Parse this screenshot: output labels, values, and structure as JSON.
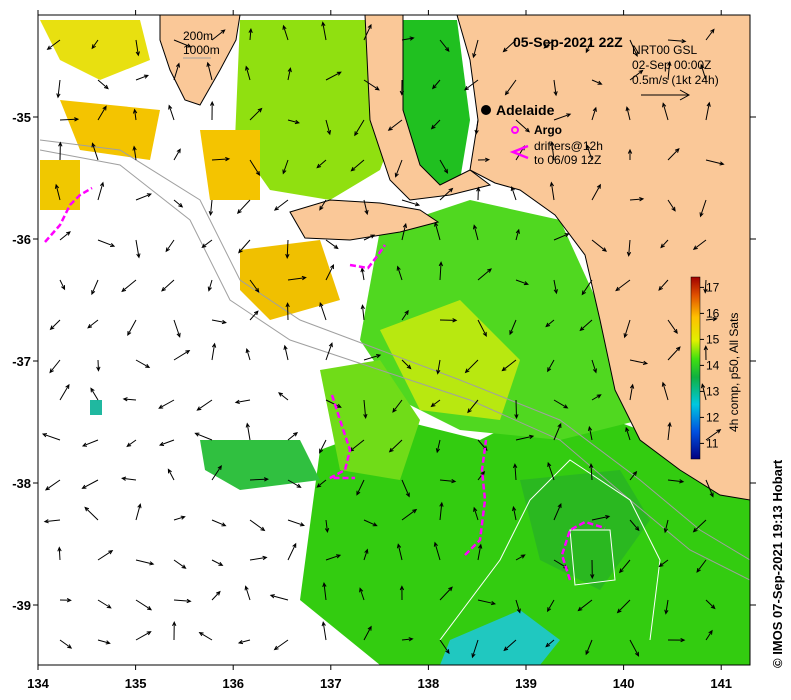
{
  "title": "05-Sep-2021 22Z",
  "legend": {
    "depth_200": "200m",
    "depth_1000": "1000m",
    "current_source": "NRT00 GSL",
    "current_time": "02-Sep 00:00Z",
    "current_scale": "0.5m/s (1kt 24h)",
    "city": "Adelaide",
    "argo": "Argo",
    "drifters_1": "drifters@12h",
    "drifters_2": "to 06/09 12Z"
  },
  "colorbar": {
    "label": "4h comp, p50, All Sats",
    "ticks": [
      "11",
      "12",
      "13",
      "14",
      "15",
      "16",
      "17"
    ],
    "range": [
      10.4,
      17.4
    ]
  },
  "credit": "© IMOS 07-Sep-2021 19:13 Hobart",
  "axes": {
    "x_ticks": [
      "134",
      "135",
      "136",
      "137",
      "138",
      "139",
      "140",
      "141"
    ],
    "y_ticks": [
      "-35",
      "-36",
      "-37",
      "-38",
      "-39"
    ]
  },
  "colors": {
    "land": "#fac898",
    "sea_green": "#33cc10",
    "argo": "#ff00ff",
    "drifter": "#ff00ff"
  }
}
